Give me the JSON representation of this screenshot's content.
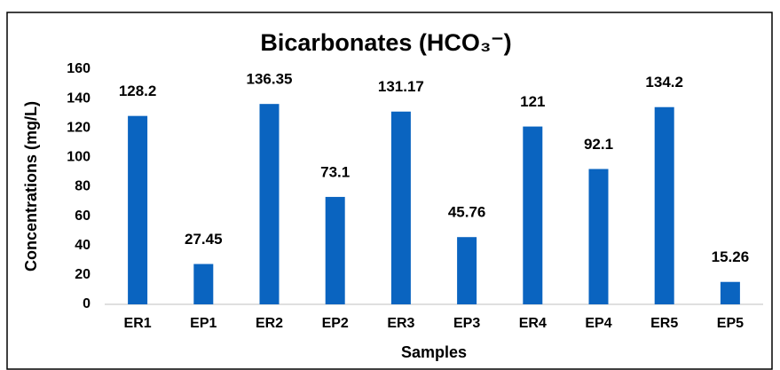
{
  "chart_data": {
    "type": "bar",
    "title": "Bicarbonates (HCO₃⁻)",
    "x_label": "Samples",
    "y_label": "Concentrations (mg/L)",
    "categories": [
      "ER1",
      "EP1",
      "ER2",
      "EP2",
      "ER3",
      "EP3",
      "ER4",
      "EP4",
      "ER5",
      "EP5"
    ],
    "values": [
      128.2,
      27.45,
      136.35,
      73.1,
      131.17,
      45.76,
      121,
      92.1,
      134.2,
      15.26
    ],
    "color": "#0a64c0",
    "ylim": [
      0,
      160
    ],
    "yticks": [
      0,
      20,
      40,
      60,
      80,
      100,
      120,
      140,
      160
    ],
    "grid": false
  }
}
